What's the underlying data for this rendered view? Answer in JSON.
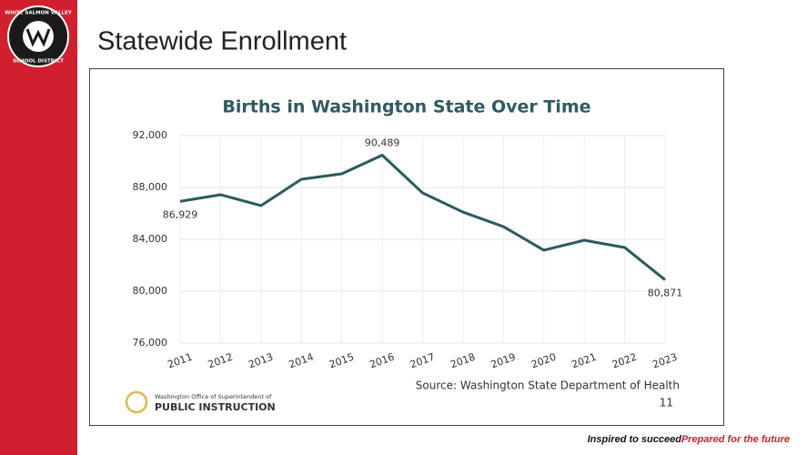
{
  "slide": {
    "title": "Statewide Enrollment",
    "logo_top": "WHITE SALMON VALLEY",
    "logo_bottom": "SCHOOL DISTRICT",
    "agency_line1": "Washington Office of Superintendent of",
    "agency_line2": "PUBLIC INSTRUCTION",
    "page_number": "11",
    "tagline_part1": "Inspired to succeed.",
    "tagline_part2": "Prepared for the future"
  },
  "chart_data": {
    "type": "line",
    "title": "Births in Washington State Over Time",
    "source": "Source: Washington State Department of Health",
    "categories": [
      "2011",
      "2012",
      "2013",
      "2014",
      "2015",
      "2016",
      "2017",
      "2018",
      "2019",
      "2020",
      "2021",
      "2022",
      "2023"
    ],
    "values": [
      86929,
      87440,
      86600,
      88630,
      89050,
      90489,
      87580,
      86100,
      84980,
      83160,
      83930,
      83370,
      80871
    ],
    "value_labels": [
      "86,929",
      null,
      null,
      null,
      null,
      "90,489",
      null,
      null,
      null,
      null,
      null,
      null,
      "80,871"
    ],
    "color": "#2c5a5f",
    "ylim": [
      76000,
      92000
    ],
    "yticks": [
      {
        "value": 76000,
        "label": "76,000"
      },
      {
        "value": 80000,
        "label": "80,000"
      },
      {
        "value": 84000,
        "label": "84,000"
      },
      {
        "value": 88000,
        "label": "88,000"
      },
      {
        "value": 92000,
        "label": "92,000"
      }
    ],
    "grid": true
  }
}
